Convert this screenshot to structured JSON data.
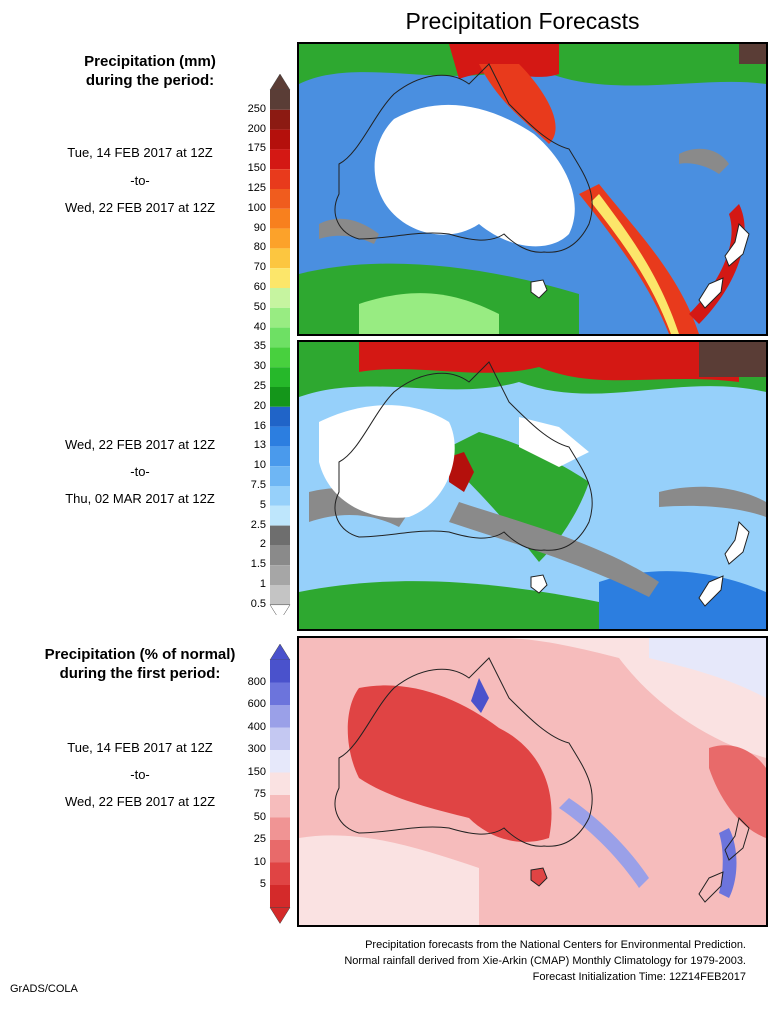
{
  "title": "Precipitation Forecasts",
  "precip_header": [
    "Precipitation (mm)",
    "during the period:"
  ],
  "pct_header": [
    "Precipitation (% of normal)",
    "during the first period:"
  ],
  "period1": {
    "start": "Tue, 14 FEB 2017 at 12Z",
    "sep": "-to-",
    "end": "Wed, 22 FEB 2017 at 12Z"
  },
  "period2": {
    "start": "Wed, 22 FEB 2017 at 12Z",
    "sep": "-to-",
    "end": "Thu, 02 MAR 2017 at 12Z"
  },
  "period3": {
    "start": "Tue, 14 FEB 2017 at 12Z",
    "sep": "-to-",
    "end": "Wed, 22 FEB 2017 at 12Z"
  },
  "precip_colorbar": {
    "labels": [
      "250",
      "200",
      "175",
      "150",
      "125",
      "100",
      "90",
      "80",
      "70",
      "60",
      "50",
      "40",
      "35",
      "30",
      "25",
      "20",
      "16",
      "13",
      "10",
      "7.5",
      "5",
      "2.5",
      "2",
      "1.5",
      "1",
      "0.5"
    ],
    "colors": [
      "#5a3d36",
      "#8c1a12",
      "#b4100c",
      "#d41814",
      "#e83a1c",
      "#f05c1e",
      "#f8801e",
      "#fca22a",
      "#fcc640",
      "#fce66a",
      "#c6f4a0",
      "#98ec82",
      "#6ee064",
      "#48d03e",
      "#26b82a",
      "#14961a",
      "#2064c8",
      "#2c7ee0",
      "#4a9aec",
      "#6eb6f4",
      "#96d0fa",
      "#bee6fc",
      "#6e6e6e",
      "#8a8a8a",
      "#a6a6a6",
      "#c4c4c4"
    ],
    "top_color": "#5a3d36"
  },
  "pct_colorbar": {
    "labels": [
      "800",
      "600",
      "400",
      "300",
      "150",
      "75",
      "50",
      "25",
      "10",
      "5"
    ],
    "colors": [
      "#4a52cc",
      "#6c74dc",
      "#9aa0e8",
      "#c4c8f2",
      "#e6e8fa",
      "#fae2e2",
      "#f6bcbc",
      "#f09494",
      "#e86a6a",
      "#e04444",
      "#d42a2a"
    ],
    "top_color": "#4a52cc",
    "bottom_color": "#d42a2a"
  },
  "footer": [
    "Precipitation forecasts from the National Centers for Environmental Prediction.",
    "Normal rainfall derived from Xie-Arkin (CMAP) Monthly Climatology for 1979-2003.",
    "Forecast Initialization Time: 12Z14FEB2017"
  ],
  "credit": "GrADS/COLA"
}
